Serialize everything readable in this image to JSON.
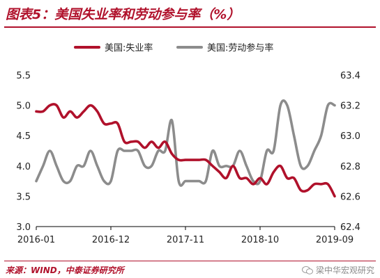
{
  "header": {
    "title": "图表5：美国失业率和劳动参与率（%）"
  },
  "footer": {
    "source": "来源：WIND，中泰证券研究所",
    "watermark": "梁中华宏观研究"
  },
  "chart_data": {
    "type": "line",
    "title": "图表5：美国失业率和劳动参与率（%）",
    "x": [
      "2016-01",
      "2016-02",
      "2016-03",
      "2016-04",
      "2016-05",
      "2016-06",
      "2016-07",
      "2016-08",
      "2016-09",
      "2016-10",
      "2016-11",
      "2016-12",
      "2017-01",
      "2017-02",
      "2017-03",
      "2017-04",
      "2017-05",
      "2017-06",
      "2017-07",
      "2017-08",
      "2017-09",
      "2017-10",
      "2017-11",
      "2017-12",
      "2018-01",
      "2018-02",
      "2018-03",
      "2018-04",
      "2018-05",
      "2018-06",
      "2018-07",
      "2018-08",
      "2018-09",
      "2018-10",
      "2018-11",
      "2018-12",
      "2019-01",
      "2019-02",
      "2019-03",
      "2019-04",
      "2019-05",
      "2019-06",
      "2019-07",
      "2019-08",
      "2019-09"
    ],
    "x_tick_labels": [
      "2016-01",
      "2016-12",
      "2017-11",
      "2018-10",
      "2019-09"
    ],
    "legend_position": "top",
    "series": [
      {
        "name": "美国:失业率",
        "axis": "left",
        "color": "#b0112b",
        "values": [
          4.9,
          4.9,
          5.0,
          5.0,
          4.8,
          4.9,
          4.8,
          4.9,
          5.0,
          4.9,
          4.7,
          4.7,
          4.7,
          4.4,
          4.4,
          4.4,
          4.3,
          4.4,
          4.3,
          4.4,
          4.2,
          4.1,
          4.1,
          4.1,
          4.1,
          4.1,
          4.0,
          3.9,
          3.8,
          4.0,
          3.8,
          3.8,
          3.7,
          3.8,
          3.7,
          3.9,
          4.0,
          3.8,
          3.8,
          3.6,
          3.6,
          3.7,
          3.7,
          3.7,
          3.5
        ]
      },
      {
        "name": "美国:劳动参与率",
        "axis": "right",
        "color": "#8c8c8c",
        "values": [
          62.7,
          62.8,
          62.9,
          62.8,
          62.7,
          62.7,
          62.8,
          62.8,
          62.9,
          62.8,
          62.7,
          62.7,
          62.9,
          62.9,
          62.9,
          62.9,
          62.8,
          62.8,
          62.9,
          62.9,
          63.1,
          62.7,
          62.7,
          62.7,
          62.7,
          62.7,
          62.9,
          62.8,
          62.8,
          62.8,
          62.9,
          62.8,
          62.7,
          62.7,
          62.9,
          62.9,
          63.2,
          63.2,
          63.0,
          62.8,
          62.8,
          62.9,
          63.0,
          63.2,
          63.2
        ]
      }
    ],
    "y_left": {
      "ylim": [
        3.0,
        5.5
      ],
      "ticks": [
        "3.0",
        "3.5",
        "4.0",
        "4.5",
        "5.0",
        "5.5"
      ]
    },
    "y_right": {
      "ylim": [
        62.4,
        63.4
      ],
      "ticks": [
        "62.4",
        "62.6",
        "62.8",
        "63.0",
        "63.2",
        "63.4"
      ]
    },
    "grid": false
  }
}
